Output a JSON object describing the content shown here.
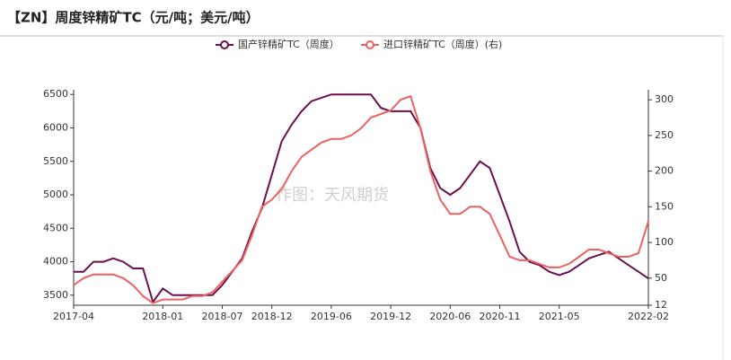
{
  "chart_data": {
    "type": "line",
    "title": "【ZN】周度锌精矿TC（元/吨；美元/吨）",
    "watermark": "作图：天风期货",
    "x": [
      "2017-04",
      "2017-05",
      "2017-06",
      "2017-07",
      "2017-08",
      "2017-09",
      "2017-10",
      "2017-11",
      "2017-12",
      "2018-01",
      "2018-02",
      "2018-03",
      "2018-04",
      "2018-05",
      "2018-06",
      "2018-07",
      "2018-08",
      "2018-09",
      "2018-10",
      "2018-11",
      "2018-12",
      "2019-01",
      "2019-02",
      "2019-03",
      "2019-04",
      "2019-05",
      "2019-06",
      "2019-07",
      "2019-08",
      "2019-09",
      "2019-10",
      "2019-11",
      "2019-12",
      "2020-01",
      "2020-02",
      "2020-03",
      "2020-04",
      "2020-05",
      "2020-06",
      "2020-07",
      "2020-08",
      "2020-09",
      "2020-10",
      "2020-11",
      "2020-12",
      "2021-01",
      "2021-02",
      "2021-03",
      "2021-04",
      "2021-05",
      "2021-06",
      "2021-07",
      "2021-08",
      "2021-09",
      "2021-10",
      "2021-11",
      "2021-12",
      "2022-01",
      "2022-02"
    ],
    "series": [
      {
        "name": "国产锌精矿TC（周度）",
        "color": "#6b0f4f",
        "axis": "y",
        "values": [
          3850,
          3850,
          4000,
          4000,
          4050,
          4000,
          3900,
          3900,
          3400,
          3600,
          3500,
          3500,
          3500,
          3500,
          3500,
          3650,
          3850,
          4050,
          4450,
          4800,
          5300,
          5800,
          6050,
          6250,
          6400,
          6450,
          6500,
          6500,
          6500,
          6500,
          6500,
          6300,
          6250,
          6250,
          6250,
          6000,
          5400,
          5100,
          5000,
          5100,
          5300,
          5500,
          5400,
          5000,
          4600,
          4150,
          4000,
          3950,
          3850,
          3800,
          3850,
          3950,
          4050,
          4100,
          4150,
          4050,
          3950,
          3850,
          3750
        ]
      },
      {
        "name": "进口锌精矿TC（周度）(右)",
        "color": "#f06060",
        "axis": "y2",
        "values": [
          40,
          50,
          55,
          55,
          55,
          50,
          40,
          25,
          15,
          20,
          20,
          20,
          25,
          25,
          30,
          45,
          60,
          75,
          110,
          150,
          160,
          175,
          200,
          220,
          230,
          240,
          245,
          245,
          250,
          260,
          275,
          280,
          285,
          300,
          305,
          260,
          200,
          160,
          140,
          140,
          150,
          150,
          140,
          110,
          80,
          75,
          75,
          70,
          65,
          65,
          70,
          80,
          90,
          90,
          85,
          80,
          80,
          85,
          130
        ]
      }
    ],
    "xticks": [
      "2017-04",
      "2018-01",
      "2018-07",
      "2018-12",
      "2019-06",
      "2019-12",
      "2020-06",
      "2020-11",
      "2021-05",
      "2022-02"
    ],
    "ylim": [
      3350,
      6570
    ],
    "yticks": [
      3500,
      4000,
      4500,
      5000,
      5500,
      6000,
      6500
    ],
    "y2lim": [
      12,
      314
    ],
    "y2ticks": [
      12,
      50,
      100,
      150,
      200,
      250,
      300
    ]
  }
}
